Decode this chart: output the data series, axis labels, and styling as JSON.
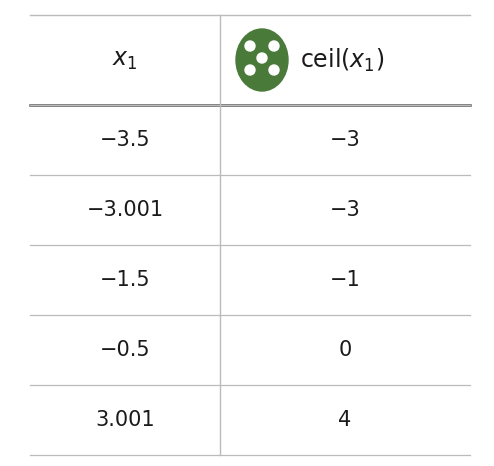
{
  "x1_values": [
    "−3.5",
    "−3.001",
    "−1.5",
    "−0.5",
    "3.001"
  ],
  "ceil_values": [
    "−3",
    "−3",
    "−1",
    "0",
    "4"
  ],
  "background_color": "#ffffff",
  "line_color": "#bbbbbb",
  "text_color": "#1a1a1a",
  "header_line_color": "#555555",
  "circle_color": "#4a7a3a",
  "circle_dot_color": "#ffffff",
  "font_size": 15,
  "header_font_size": 17
}
